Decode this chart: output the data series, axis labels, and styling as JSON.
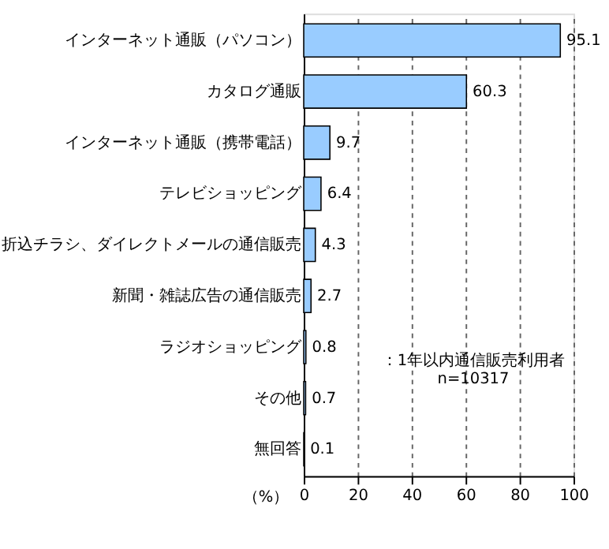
{
  "chart_data": {
    "type": "bar",
    "orientation": "horizontal",
    "categories": [
      "インターネット通販（パソコン）",
      "カタログ通販",
      "インターネット通販（携帯電話）",
      "テレビショッピング",
      "折込チラシ、ダイレクトメールの通信販売",
      "新聞・雑誌広告の通信販売",
      "ラジオショッピング",
      "その他",
      "無回答"
    ],
    "values": [
      95.1,
      60.3,
      9.7,
      6.4,
      4.3,
      2.7,
      0.8,
      0.7,
      0.1
    ],
    "color": "#99ccff",
    "xlim": [
      0,
      100
    ],
    "xticks": [
      0,
      20,
      40,
      60,
      80,
      100
    ],
    "xlabel": "（%）",
    "grid": "x",
    "data_labels": true,
    "annotations": [
      "：1年以内通信販売利用者\nn=10317"
    ]
  }
}
